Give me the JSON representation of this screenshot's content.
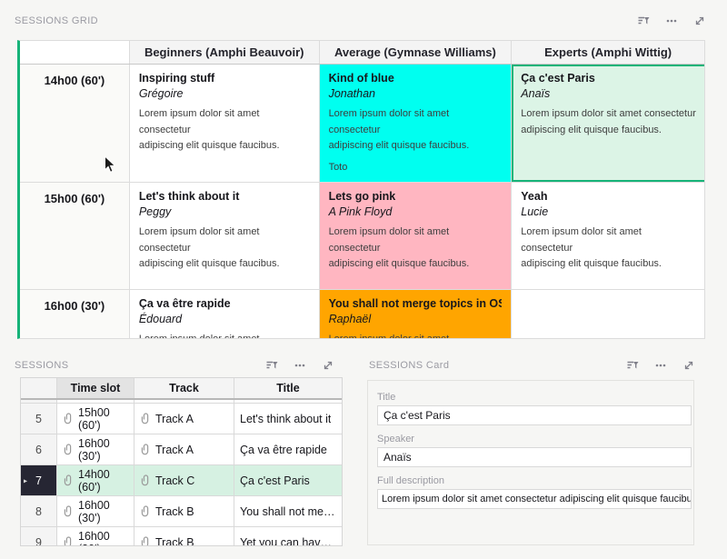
{
  "colors": {
    "accent_green": "#16b378",
    "cell_cyan": "#00fff0",
    "cell_green": "#dcf4e6",
    "cell_pink": "#ffb6c1",
    "cell_orange": "#ffa500",
    "selected_row_dark": "#262633"
  },
  "panels": {
    "grid": {
      "label": "SESSIONS GRID",
      "columns": [
        "Beginners (Amphi Beauvoir)",
        "Average (Gymnase Williams)",
        "Experts (Amphi Wittig)"
      ],
      "rows": [
        {
          "time": "14h00 (60')",
          "cells": [
            {
              "title": "Inspiring stuff",
              "speaker": "Grégoire",
              "desc": "Lorem ipsum dolor sit amet consectetur\nadipiscing elit quisque faucibus.",
              "bg": "#ffffff"
            },
            {
              "title": "Kind of blue",
              "speaker": "Jonathan",
              "desc": "Lorem ipsum dolor sit amet consectetur\nadipiscing elit quisque faucibus.",
              "extra": "Toto",
              "bg": "#00fff0"
            },
            {
              "title": "Ça c'est Paris",
              "speaker": "Anaïs",
              "desc": "Lorem ipsum dolor sit amet consectetur\nadipiscing elit quisque faucibus.",
              "bg": "#dcf4e6",
              "selected": true
            }
          ]
        },
        {
          "time": "15h00 (60')",
          "cells": [
            {
              "title": "Let's think about it",
              "speaker": "Peggy",
              "desc": "Lorem ipsum dolor sit amet consectetur\nadipiscing elit quisque faucibus.",
              "bg": "#ffffff"
            },
            {
              "title": "Lets go pink",
              "speaker": "A Pink Floyd",
              "desc": "Lorem ipsum dolor sit amet consectetur\nadipiscing elit quisque faucibus.",
              "bg": "#ffb6c1"
            },
            {
              "title": "Yeah",
              "speaker": "Lucie",
              "desc": "Lorem ipsum dolor sit amet consectetur\nadipiscing elit quisque faucibus.",
              "bg": "#ffffff"
            }
          ]
        },
        {
          "time": "16h00 (30')",
          "cells": [
            {
              "title": "Ça va être rapide",
              "speaker": "Édouard",
              "desc": "Lorem ipsum dolor sit amet consectetur",
              "bg": "#ffffff"
            },
            {
              "title": "You shall not merge topics in OST",
              "speaker": "Raphaël",
              "desc": "Lorem ipsum dolor sit amet consectetur",
              "bg": "#ffa500"
            },
            {
              "title": "",
              "speaker": "",
              "desc": "",
              "bg": "#ffffff"
            }
          ]
        }
      ]
    },
    "table": {
      "label": "SESSIONS",
      "headers": [
        "Time slot",
        "Track",
        "Title"
      ],
      "selected_header": "Time slot",
      "rows": [
        {
          "num": "5",
          "time": "15h00 (60')",
          "track": "Track A",
          "title": "Let's think about it",
          "selected": false
        },
        {
          "num": "6",
          "time": "16h00 (30')",
          "track": "Track A",
          "title": "Ça va être rapide",
          "selected": false
        },
        {
          "num": "7",
          "time": "14h00 (60')",
          "track": "Track C",
          "title": "Ça c'est Paris",
          "selected": true
        },
        {
          "num": "8",
          "time": "16h00 (30')",
          "track": "Track B",
          "title": "You shall not merge to…",
          "selected": false
        },
        {
          "num": "9",
          "time": "16h00 (30')",
          "track": "Track B",
          "title": "Yet you can have seve…",
          "selected": false
        }
      ]
    },
    "card": {
      "label": "SESSIONS Card",
      "fields": [
        {
          "label": "Title",
          "value": "Ça c'est Paris"
        },
        {
          "label": "Speaker",
          "value": "Anaïs"
        },
        {
          "label": "Full description",
          "value": "Lorem ipsum dolor sit amet consectetur adipiscing elit quisque faucibus."
        }
      ]
    },
    "icons": [
      "sort-filter-icon",
      "more-options-icon",
      "expand-icon"
    ]
  }
}
